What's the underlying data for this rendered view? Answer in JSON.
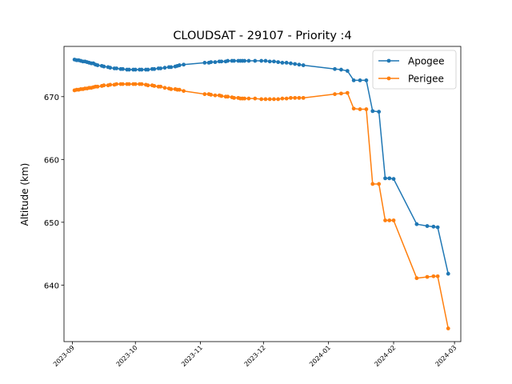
{
  "chart_data": {
    "type": "line",
    "title": "CLOUDSAT - 29107 - Priority :4",
    "xlabel": "",
    "ylabel": "Altitude (km)",
    "x_type": "date",
    "xlim": [
      "2023-08-28",
      "2024-03-04"
    ],
    "ylim": [
      631,
      678
    ],
    "x_ticks": [
      "2023-09",
      "2023-10",
      "2023-11",
      "2023-12",
      "2024-01",
      "2024-02",
      "2024-03"
    ],
    "y_ticks": [
      640,
      650,
      660,
      670
    ],
    "grid": false,
    "legend_position": "top-right",
    "series": [
      {
        "name": "Apogee",
        "color": "#1f77b4",
        "points": [
          [
            "2023-09-02",
            675.9
          ],
          [
            "2023-09-03",
            675.8
          ],
          [
            "2023-09-04",
            675.8
          ],
          [
            "2023-09-05",
            675.7
          ],
          [
            "2023-09-06",
            675.6
          ],
          [
            "2023-09-07",
            675.6
          ],
          [
            "2023-09-08",
            675.5
          ],
          [
            "2023-09-09",
            675.4
          ],
          [
            "2023-09-10",
            675.3
          ],
          [
            "2023-09-11",
            675.3
          ],
          [
            "2023-09-12",
            675.1
          ],
          [
            "2023-09-13",
            675.0
          ],
          [
            "2023-09-15",
            674.9
          ],
          [
            "2023-09-16",
            674.8
          ],
          [
            "2023-09-18",
            674.7
          ],
          [
            "2023-09-19",
            674.6
          ],
          [
            "2023-09-21",
            674.5
          ],
          [
            "2023-09-22",
            674.5
          ],
          [
            "2023-09-24",
            674.4
          ],
          [
            "2023-09-25",
            674.4
          ],
          [
            "2023-09-27",
            674.3
          ],
          [
            "2023-09-28",
            674.3
          ],
          [
            "2023-09-30",
            674.3
          ],
          [
            "2023-10-01",
            674.3
          ],
          [
            "2023-10-03",
            674.3
          ],
          [
            "2023-10-04",
            674.3
          ],
          [
            "2023-10-06",
            674.3
          ],
          [
            "2023-10-07",
            674.3
          ],
          [
            "2023-10-09",
            674.4
          ],
          [
            "2023-10-10",
            674.4
          ],
          [
            "2023-10-12",
            674.5
          ],
          [
            "2023-10-13",
            674.5
          ],
          [
            "2023-10-15",
            674.6
          ],
          [
            "2023-10-17",
            674.7
          ],
          [
            "2023-10-18",
            674.7
          ],
          [
            "2023-10-20",
            674.8
          ],
          [
            "2023-10-21",
            674.9
          ],
          [
            "2023-10-22",
            675.0
          ],
          [
            "2023-10-24",
            675.1
          ],
          [
            "2023-11-03",
            675.4
          ],
          [
            "2023-11-05",
            675.4
          ],
          [
            "2023-11-06",
            675.5
          ],
          [
            "2023-11-08",
            675.5
          ],
          [
            "2023-11-10",
            675.6
          ],
          [
            "2023-11-11",
            675.6
          ],
          [
            "2023-11-13",
            675.6
          ],
          [
            "2023-11-14",
            675.7
          ],
          [
            "2023-11-16",
            675.7
          ],
          [
            "2023-11-17",
            675.7
          ],
          [
            "2023-11-19",
            675.7
          ],
          [
            "2023-11-20",
            675.7
          ],
          [
            "2023-11-21",
            675.7
          ],
          [
            "2023-11-22",
            675.7
          ],
          [
            "2023-11-24",
            675.7
          ],
          [
            "2023-11-27",
            675.7
          ],
          [
            "2023-11-30",
            675.7
          ],
          [
            "2023-12-02",
            675.7
          ],
          [
            "2023-12-04",
            675.6
          ],
          [
            "2023-12-06",
            675.6
          ],
          [
            "2023-12-08",
            675.5
          ],
          [
            "2023-12-10",
            675.4
          ],
          [
            "2023-12-12",
            675.4
          ],
          [
            "2023-12-14",
            675.3
          ],
          [
            "2023-12-16",
            675.2
          ],
          [
            "2023-12-18",
            675.1
          ],
          [
            "2023-12-20",
            675.0
          ],
          [
            "2024-01-04",
            674.4
          ],
          [
            "2024-01-07",
            674.3
          ],
          [
            "2024-01-10",
            674.1
          ],
          [
            "2024-01-13",
            672.6
          ],
          [
            "2024-01-16",
            672.6
          ],
          [
            "2024-01-19",
            672.6
          ],
          [
            "2024-01-22",
            667.7
          ],
          [
            "2024-01-25",
            667.6
          ],
          [
            "2024-01-28",
            657.0
          ],
          [
            "2024-01-30",
            657.0
          ],
          [
            "2024-02-01",
            656.9
          ],
          [
            "2024-02-12",
            649.7
          ],
          [
            "2024-02-17",
            649.4
          ],
          [
            "2024-02-20",
            649.3
          ],
          [
            "2024-02-22",
            649.2
          ],
          [
            "2024-02-27",
            641.8
          ]
        ]
      },
      {
        "name": "Perigee",
        "color": "#ff7f0e",
        "points": [
          [
            "2023-09-02",
            671.0
          ],
          [
            "2023-09-03",
            671.1
          ],
          [
            "2023-09-04",
            671.1
          ],
          [
            "2023-09-05",
            671.2
          ],
          [
            "2023-09-06",
            671.2
          ],
          [
            "2023-09-07",
            671.3
          ],
          [
            "2023-09-08",
            671.3
          ],
          [
            "2023-09-09",
            671.4
          ],
          [
            "2023-09-10",
            671.4
          ],
          [
            "2023-09-11",
            671.5
          ],
          [
            "2023-09-12",
            671.6
          ],
          [
            "2023-09-13",
            671.6
          ],
          [
            "2023-09-15",
            671.7
          ],
          [
            "2023-09-16",
            671.8
          ],
          [
            "2023-09-18",
            671.8
          ],
          [
            "2023-09-19",
            671.9
          ],
          [
            "2023-09-21",
            671.9
          ],
          [
            "2023-09-22",
            672.0
          ],
          [
            "2023-09-24",
            672.0
          ],
          [
            "2023-09-25",
            672.0
          ],
          [
            "2023-09-27",
            672.0
          ],
          [
            "2023-09-28",
            672.0
          ],
          [
            "2023-09-30",
            672.0
          ],
          [
            "2023-10-01",
            672.0
          ],
          [
            "2023-10-03",
            672.0
          ],
          [
            "2023-10-04",
            672.0
          ],
          [
            "2023-10-06",
            671.9
          ],
          [
            "2023-10-07",
            671.8
          ],
          [
            "2023-10-09",
            671.8
          ],
          [
            "2023-10-10",
            671.7
          ],
          [
            "2023-10-12",
            671.6
          ],
          [
            "2023-10-13",
            671.6
          ],
          [
            "2023-10-15",
            671.4
          ],
          [
            "2023-10-17",
            671.3
          ],
          [
            "2023-10-18",
            671.2
          ],
          [
            "2023-10-20",
            671.2
          ],
          [
            "2023-10-21",
            671.1
          ],
          [
            "2023-10-22",
            671.1
          ],
          [
            "2023-10-24",
            670.9
          ],
          [
            "2023-11-03",
            670.4
          ],
          [
            "2023-11-05",
            670.4
          ],
          [
            "2023-11-06",
            670.3
          ],
          [
            "2023-11-08",
            670.2
          ],
          [
            "2023-11-10",
            670.2
          ],
          [
            "2023-11-11",
            670.1
          ],
          [
            "2023-11-13",
            670.0
          ],
          [
            "2023-11-14",
            670.0
          ],
          [
            "2023-11-16",
            669.9
          ],
          [
            "2023-11-17",
            669.8
          ],
          [
            "2023-11-19",
            669.8
          ],
          [
            "2023-11-20",
            669.7
          ],
          [
            "2023-11-21",
            669.7
          ],
          [
            "2023-11-22",
            669.7
          ],
          [
            "2023-11-24",
            669.7
          ],
          [
            "2023-11-27",
            669.7
          ],
          [
            "2023-11-30",
            669.6
          ],
          [
            "2023-12-02",
            669.6
          ],
          [
            "2023-12-04",
            669.6
          ],
          [
            "2023-12-06",
            669.6
          ],
          [
            "2023-12-08",
            669.6
          ],
          [
            "2023-12-10",
            669.7
          ],
          [
            "2023-12-12",
            669.7
          ],
          [
            "2023-12-14",
            669.8
          ],
          [
            "2023-12-16",
            669.8
          ],
          [
            "2023-12-18",
            669.8
          ],
          [
            "2023-12-20",
            669.8
          ],
          [
            "2024-01-04",
            670.4
          ],
          [
            "2024-01-07",
            670.5
          ],
          [
            "2024-01-10",
            670.6
          ],
          [
            "2024-01-13",
            668.1
          ],
          [
            "2024-01-16",
            668.0
          ],
          [
            "2024-01-19",
            668.0
          ],
          [
            "2024-01-22",
            656.1
          ],
          [
            "2024-01-25",
            656.1
          ],
          [
            "2024-01-28",
            650.3
          ],
          [
            "2024-01-30",
            650.3
          ],
          [
            "2024-02-01",
            650.3
          ],
          [
            "2024-02-12",
            641.1
          ],
          [
            "2024-02-17",
            641.3
          ],
          [
            "2024-02-20",
            641.4
          ],
          [
            "2024-02-22",
            641.4
          ],
          [
            "2024-02-27",
            633.1
          ]
        ]
      }
    ]
  }
}
